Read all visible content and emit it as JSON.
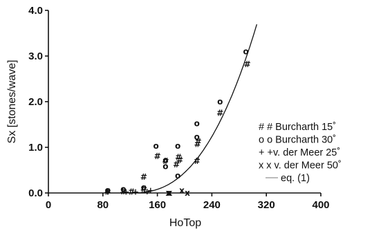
{
  "chart_data": {
    "type": "scatter",
    "xlabel": "HoTop",
    "ylabel": "Sx [stones/wave]",
    "xlim": [
      0,
      400
    ],
    "ylim": [
      0,
      4.0
    ],
    "x_ticks": [
      "0",
      "80",
      "160",
      "240",
      "320",
      "400"
    ],
    "y_ticks": [
      "0.0",
      "1.0",
      "2.0",
      "3.0",
      "4.0"
    ],
    "grid": false,
    "legend_position": "right",
    "series": [
      {
        "name": "Burcharth 15°",
        "legend_label": "# # Burcharth 15˚",
        "marker_glyph": "#",
        "points": [
          [
            87,
            0.02
          ],
          [
            110,
            0.03
          ],
          [
            122,
            0.02
          ],
          [
            140,
            0.35
          ],
          [
            140,
            0.08
          ],
          [
            160,
            0.8
          ],
          [
            172,
            0.7
          ],
          [
            188,
            0.62
          ],
          [
            191,
            0.78
          ],
          [
            193,
            0.72
          ],
          [
            218,
            0.7
          ],
          [
            219,
            1.07
          ],
          [
            220,
            1.12
          ],
          [
            252,
            1.75
          ],
          [
            292,
            2.82
          ]
        ]
      },
      {
        "name": "Burcharth 30°",
        "legend_label": "o o Burcharth 30˚",
        "marker_glyph": "o",
        "points": [
          [
            87,
            0.06
          ],
          [
            110,
            0.08
          ],
          [
            140,
            0.12
          ],
          [
            158,
            1.03
          ],
          [
            172,
            0.58
          ],
          [
            172,
            0.72
          ],
          [
            190,
            0.38
          ],
          [
            190,
            1.03
          ],
          [
            218,
            1.23
          ],
          [
            218,
            1.52
          ],
          [
            252,
            2.0
          ],
          [
            290,
            3.1
          ]
        ]
      },
      {
        "name": "v. der Meer 25°",
        "legend_label": "+ +v. der Meer 25˚",
        "marker_glyph": "+",
        "points": [
          [
            87,
            0.02
          ],
          [
            114,
            0.02
          ],
          [
            128,
            0.02
          ],
          [
            145,
            0.03
          ],
          [
            150,
            0.05
          ]
        ]
      },
      {
        "name": "v. der Meer 50°",
        "legend_label": "x x v. der Meer 50˚",
        "marker_glyph": "x",
        "points": [
          [
            176,
            0.0
          ],
          [
            178,
            0.0
          ],
          [
            196,
            0.05
          ],
          [
            204,
            0.0
          ]
        ]
      }
    ],
    "curve": {
      "name": "eq. (1)",
      "legend_label": "eq. (1)",
      "x_start": 120,
      "x_end": 306,
      "x_ref": 290,
      "y_ref": 2.95,
      "exponent": 2.5
    }
  }
}
